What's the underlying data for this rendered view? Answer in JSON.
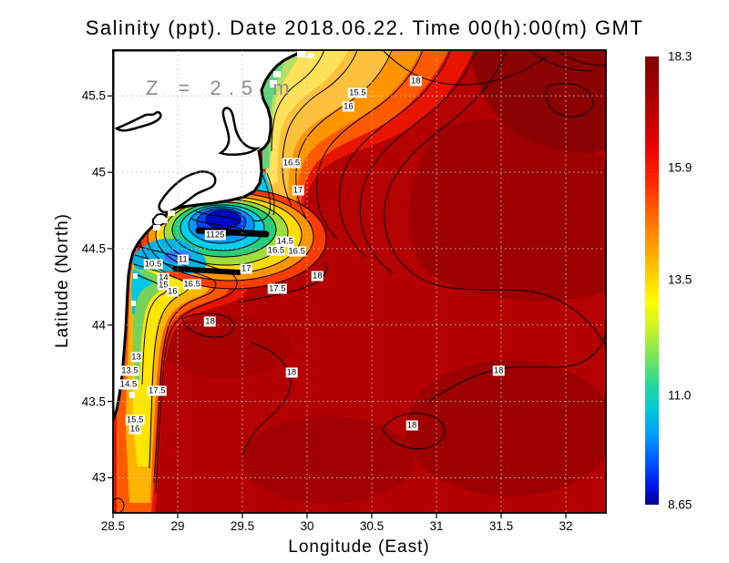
{
  "chart_data": {
    "type": "heatmap",
    "title": "Salinity (ppt). Date 2018.06.22. Time 00(h):00(m) GMT",
    "variable": "Salinity (ppt)",
    "date": "2018.06.22",
    "time": "00(h):00(m) GMT",
    "annotation": "Z = 2.5 m",
    "xlabel": "Longitude (East)",
    "ylabel": "Latitude (North)",
    "x_ticks": [
      "28.5",
      "29",
      "29.5",
      "30",
      "30.5",
      "31",
      "31.5",
      "32"
    ],
    "x_tick_values": [
      28.5,
      29,
      29.5,
      30,
      30.5,
      31,
      31.5,
      32
    ],
    "y_ticks": [
      "45.5",
      "45",
      "44.5",
      "44",
      "43.5",
      "43"
    ],
    "y_tick_values": [
      45.5,
      45,
      44.5,
      44,
      43.5,
      43
    ],
    "xlim": [
      28.5,
      32.31
    ],
    "ylim": [
      42.77,
      45.8
    ],
    "grid": true,
    "colorbar": {
      "position": "right",
      "colormap": "jet",
      "min": 8.65,
      "max": 18.3,
      "tick_labels": [
        "18.3",
        "15.9",
        "13.5",
        "11.0",
        "8.65"
      ],
      "tick_values": [
        18.3,
        15.9,
        13.5,
        11.0,
        8.65
      ]
    },
    "contour_labels": [
      {
        "value": "15.5",
        "lon": 30.39,
        "lat": 45.52
      },
      {
        "value": "16",
        "lon": 30.32,
        "lat": 45.43
      },
      {
        "value": "18",
        "lon": 30.84,
        "lat": 45.6
      },
      {
        "value": "16.5",
        "lon": 29.88,
        "lat": 45.06
      },
      {
        "value": "17",
        "lon": 29.93,
        "lat": 44.88
      },
      {
        "value": "1125",
        "lon": 29.29,
        "lat": 44.59
      },
      {
        "value": "10.5",
        "lon": 28.81,
        "lat": 44.4
      },
      {
        "value": "11",
        "lon": 29.04,
        "lat": 44.43
      },
      {
        "value": "14.5",
        "lon": 29.83,
        "lat": 44.55
      },
      {
        "value": "16.5",
        "lon": 29.76,
        "lat": 44.49
      },
      {
        "value": "16.5",
        "lon": 29.92,
        "lat": 44.48
      },
      {
        "value": "14",
        "lon": 28.89,
        "lat": 44.31
      },
      {
        "value": "15",
        "lon": 28.89,
        "lat": 44.26
      },
      {
        "value": "16",
        "lon": 28.96,
        "lat": 44.22
      },
      {
        "value": "16.5",
        "lon": 29.11,
        "lat": 44.27
      },
      {
        "value": "17",
        "lon": 29.53,
        "lat": 44.37
      },
      {
        "value": "17.5",
        "lon": 29.77,
        "lat": 44.24
      },
      {
        "value": "18",
        "lon": 30.08,
        "lat": 44.32
      },
      {
        "value": "18",
        "lon": 29.25,
        "lat": 44.02
      },
      {
        "value": "13",
        "lon": 28.68,
        "lat": 43.79
      },
      {
        "value": "13.5",
        "lon": 28.63,
        "lat": 43.7
      },
      {
        "value": "14.5",
        "lon": 28.62,
        "lat": 43.61
      },
      {
        "value": "17.5",
        "lon": 28.84,
        "lat": 43.57
      },
      {
        "value": "15.5",
        "lon": 28.67,
        "lat": 43.38
      },
      {
        "value": "16",
        "lon": 28.67,
        "lat": 43.32
      },
      {
        "value": "18",
        "lon": 29.88,
        "lat": 43.69
      },
      {
        "value": "18",
        "lon": 31.48,
        "lat": 43.7
      },
      {
        "value": "18",
        "lon": 30.81,
        "lat": 43.34
      }
    ]
  }
}
